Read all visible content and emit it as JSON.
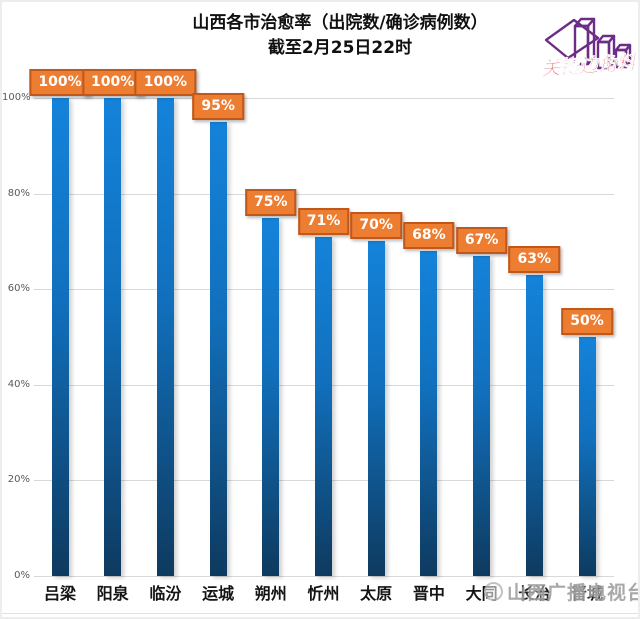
{
  "header": {
    "title_line1": "山西各市治愈率（出院数/确诊病例数）",
    "title_line2": "截至2月25日22时"
  },
  "corner_logo": {
    "text": "关键边角料",
    "shape_color": "#6B2D86",
    "text_color": "#CE2B37"
  },
  "watermark": {
    "text": "山西广播电视台"
  },
  "chart_data": {
    "type": "bar",
    "title": "山西各市治愈率（出院数/确诊病例数）截至2月25日22时",
    "categories": [
      "吕梁",
      "阳泉",
      "临汾",
      "运城",
      "朔州",
      "忻州",
      "太原",
      "晋中",
      "大同",
      "长治",
      "晋城"
    ],
    "values": [
      100,
      100,
      100,
      95,
      75,
      71,
      70,
      68,
      67,
      63,
      50
    ],
    "labels": [
      "100%",
      "100%",
      "100%",
      "95%",
      "75%",
      "71%",
      "70%",
      "68%",
      "67%",
      "63%",
      "50%"
    ],
    "xlabel": "",
    "ylabel": "",
    "ylim": [
      0,
      100
    ],
    "yticks": [
      0,
      20,
      40,
      60,
      80,
      100
    ],
    "ytick_labels": [
      "0%",
      "20%",
      "40%",
      "60%",
      "80%",
      "100%"
    ],
    "grid": true,
    "legend": false,
    "colors": {
      "bar_top": "#1483DA",
      "bar_bottom": "#0E3A5F",
      "value_box_bg": "#ED7D31",
      "value_box_border": "#C0571B",
      "value_box_text": "#FFFFFF",
      "gridline": "#D9D9D9"
    }
  }
}
